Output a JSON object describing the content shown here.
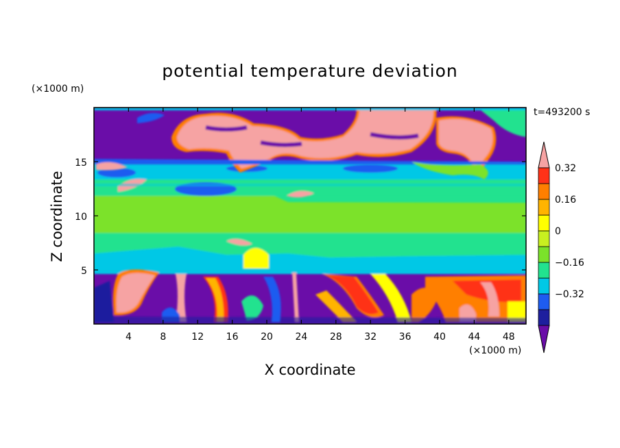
{
  "chart_data": {
    "type": "heatmap",
    "title": "potential temperature deviation",
    "xlabel": "X coordinate",
    "ylabel": "Z coordinate",
    "x_unit": "(×1000 m)",
    "y_unit": "(×1000 m)",
    "time_label": "t=493200 s",
    "xlim": [
      0,
      50
    ],
    "ylim": [
      0,
      20
    ],
    "x_ticks": [
      4,
      8,
      12,
      16,
      20,
      24,
      28,
      32,
      36,
      40,
      44,
      48
    ],
    "y_ticks": [
      5,
      10,
      15
    ],
    "colorbar": {
      "levels": [
        -0.48,
        -0.4,
        -0.32,
        -0.24,
        -0.16,
        -0.08,
        0,
        0.08,
        0.16,
        0.24,
        0.32,
        0.4,
        0.48
      ],
      "tick_labels": [
        "0.32",
        "0.16",
        "0",
        "−0.16",
        "−0.32"
      ],
      "tick_values": [
        0.32,
        0.16,
        0,
        -0.16,
        -0.32
      ],
      "colors": [
        "#6a0da8",
        "#1e1f9e",
        "#1e5cf0",
        "#00c8e6",
        "#22e28f",
        "#7be22a",
        "#c8f020",
        "#ffff00",
        "#ffb400",
        "#ff7f00",
        "#ff3218",
        "#f6a3a3"
      ]
    },
    "bands": [
      {
        "z_range": [
          15,
          20
        ],
        "description_value": "upper layer, mixed purple and pink"
      },
      {
        "z_range": [
          5,
          15
        ],
        "description_value": "middle layer, cyan and green"
      },
      {
        "z_range": [
          0,
          5
        ],
        "description_value": "lower layer, purple with warm plumes"
      }
    ]
  }
}
